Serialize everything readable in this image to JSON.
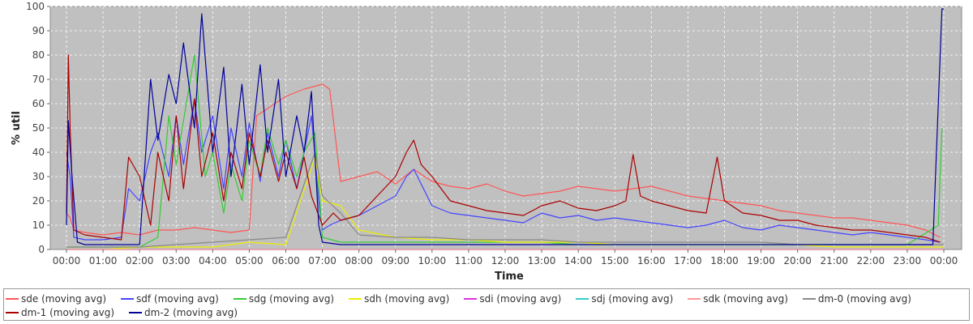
{
  "chart_data": {
    "type": "line",
    "title": "",
    "xlabel": "Time",
    "ylabel": "% util",
    "xlim": [
      0,
      24
    ],
    "ylim": [
      0,
      100
    ],
    "yticks": [
      0,
      10,
      20,
      30,
      40,
      50,
      60,
      70,
      80,
      90,
      100
    ],
    "xticks": [
      "00:00",
      "01:00",
      "02:00",
      "03:00",
      "04:00",
      "05:00",
      "06:00",
      "07:00",
      "08:00",
      "09:00",
      "10:00",
      "11:00",
      "12:00",
      "13:00",
      "14:00",
      "15:00",
      "16:00",
      "17:00",
      "18:00",
      "19:00",
      "20:00",
      "21:00",
      "22:00",
      "23:00",
      "00:00"
    ],
    "grid": true,
    "legend_position": "bottom",
    "series": [
      {
        "name": "sde (moving avg)",
        "color": "#ff5555",
        "x": [
          0,
          0.1,
          0.2,
          0.5,
          1,
          1.5,
          2,
          2.5,
          3,
          3.5,
          4,
          4.5,
          5,
          5.2,
          5.5,
          6,
          6.5,
          7,
          7.2,
          7.5,
          8,
          8.5,
          9,
          9.5,
          10,
          10.5,
          11,
          11.5,
          12,
          12.5,
          13,
          13.5,
          14,
          14.5,
          15,
          15.5,
          16,
          16.5,
          17,
          17.5,
          18,
          18.5,
          19,
          19.5,
          20,
          20.5,
          21,
          21.5,
          22,
          22.5,
          23,
          23.5,
          23.9
        ],
        "y": [
          15,
          13,
          8,
          7,
          6,
          7,
          6,
          8,
          8,
          9,
          8,
          7,
          8,
          55,
          58,
          63,
          66,
          68,
          66,
          28,
          30,
          32,
          27,
          33,
          28,
          26,
          25,
          27,
          24,
          22,
          23,
          24,
          26,
          25,
          24,
          25,
          26,
          24,
          22,
          21,
          20,
          19,
          18,
          16,
          15,
          14,
          13,
          13,
          12,
          11,
          10,
          8,
          5
        ]
      },
      {
        "name": "sdf (moving avg)",
        "color": "#4444ff",
        "x": [
          0,
          0.1,
          0.2,
          0.5,
          1,
          1.5,
          1.7,
          2,
          2.3,
          2.5,
          2.8,
          3,
          3.2,
          3.5,
          3.7,
          4,
          4.3,
          4.5,
          4.8,
          5,
          5.3,
          5.5,
          5.8,
          6,
          6.3,
          6.5,
          6.7,
          6.9,
          7,
          7.2,
          7.5,
          8,
          8.5,
          9,
          9.3,
          9.5,
          10,
          10.5,
          11,
          11.5,
          12,
          12.5,
          13,
          13.5,
          14,
          14.5,
          15,
          15.5,
          16,
          16.5,
          17,
          17.5,
          18,
          18.5,
          19,
          19.5,
          20,
          20.5,
          21,
          21.5,
          22,
          22.5,
          23,
          23.5,
          23.9
        ],
        "y": [
          40,
          30,
          5,
          4,
          4,
          5,
          25,
          20,
          40,
          48,
          30,
          55,
          35,
          62,
          40,
          55,
          25,
          50,
          30,
          52,
          28,
          48,
          30,
          45,
          25,
          40,
          55,
          20,
          8,
          10,
          12,
          14,
          18,
          22,
          30,
          33,
          18,
          15,
          14,
          13,
          12,
          11,
          15,
          13,
          14,
          12,
          13,
          12,
          11,
          10,
          9,
          10,
          12,
          9,
          8,
          10,
          9,
          8,
          7,
          6,
          7,
          6,
          5,
          4,
          3
        ]
      },
      {
        "name": "sdg (moving avg)",
        "color": "#33cc33",
        "x": [
          0,
          0.5,
          1,
          2,
          2.5,
          2.8,
          3,
          3.3,
          3.5,
          3.8,
          4,
          4.3,
          4.5,
          4.8,
          5,
          5.3,
          5.5,
          5.8,
          6,
          6.3,
          6.5,
          6.8,
          7,
          7.5,
          8,
          9,
          10,
          11,
          12,
          13,
          14,
          15,
          16,
          17,
          18,
          19,
          20,
          21,
          22,
          23,
          23.85,
          23.95
        ],
        "y": [
          1,
          1,
          1,
          1,
          5,
          55,
          35,
          62,
          80,
          30,
          40,
          15,
          35,
          20,
          45,
          30,
          50,
          35,
          45,
          30,
          40,
          48,
          5,
          3,
          3,
          3,
          3,
          3,
          3,
          3,
          2,
          2,
          2,
          2,
          2,
          2,
          2,
          2,
          2,
          2,
          10,
          50
        ]
      },
      {
        "name": "sdh (moving avg)",
        "color": "#eeee00",
        "x": [
          0,
          1,
          2,
          3,
          4,
          5,
          6,
          6.8,
          7,
          7.5,
          8,
          9,
          10,
          11,
          12,
          13,
          14,
          15,
          16,
          17,
          18,
          19,
          20,
          21,
          22,
          23,
          24
        ],
        "y": [
          0,
          0,
          1,
          1,
          1,
          3,
          2,
          38,
          20,
          18,
          8,
          5,
          4,
          4,
          3,
          3,
          3,
          2,
          2,
          2,
          2,
          2,
          2,
          1,
          1,
          1,
          1
        ]
      },
      {
        "name": "sdi (moving avg)",
        "color": "#dd33dd",
        "x": [
          0,
          24
        ],
        "y": [
          0,
          0
        ]
      },
      {
        "name": "sdj (moving avg)",
        "color": "#33cccc",
        "x": [
          0,
          24
        ],
        "y": [
          0,
          0
        ]
      },
      {
        "name": "sdk (moving avg)",
        "color": "#ff9999",
        "x": [
          0,
          24
        ],
        "y": [
          0,
          0
        ]
      },
      {
        "name": "dm-0 (moving avg)",
        "color": "#888888",
        "x": [
          0,
          1,
          2,
          3,
          4,
          5,
          6,
          6.8,
          7,
          7.5,
          8,
          9,
          10,
          11,
          12,
          13,
          14,
          15,
          16,
          17,
          18,
          19,
          20,
          21,
          22,
          23,
          24
        ],
        "y": [
          1,
          1,
          1,
          2,
          3,
          4,
          5,
          40,
          22,
          15,
          6,
          5,
          5,
          4,
          4,
          4,
          3,
          3,
          3,
          3,
          3,
          3,
          2,
          2,
          2,
          2,
          2
        ]
      },
      {
        "name": "dm-1 (moving avg)",
        "color": "#aa0000",
        "x": [
          0,
          0.05,
          0.1,
          0.2,
          0.5,
          1,
          1.5,
          1.7,
          2,
          2.3,
          2.5,
          2.8,
          3,
          3.2,
          3.5,
          3.7,
          4,
          4.3,
          4.5,
          4.8,
          5,
          5.3,
          5.5,
          5.8,
          6,
          6.3,
          6.5,
          6.7,
          7,
          7.3,
          7.5,
          8,
          8.5,
          9,
          9.3,
          9.5,
          9.7,
          10,
          10.5,
          11,
          11.5,
          12,
          12.5,
          13,
          13.5,
          14,
          14.5,
          15,
          15.3,
          15.5,
          15.7,
          16,
          16.5,
          17,
          17.5,
          17.8,
          18,
          18.5,
          19,
          19.5,
          20,
          20.5,
          21,
          21.5,
          22,
          22.5,
          23,
          23.5,
          23.9
        ],
        "y": [
          15,
          80,
          50,
          8,
          6,
          5,
          4,
          38,
          30,
          10,
          40,
          20,
          55,
          25,
          62,
          30,
          48,
          20,
          40,
          25,
          48,
          30,
          45,
          28,
          40,
          25,
          38,
          22,
          10,
          15,
          12,
          14,
          22,
          30,
          40,
          45,
          35,
          30,
          20,
          18,
          16,
          15,
          14,
          18,
          20,
          17,
          16,
          18,
          20,
          39,
          22,
          20,
          18,
          16,
          15,
          38,
          20,
          15,
          14,
          12,
          12,
          10,
          9,
          8,
          8,
          7,
          6,
          5,
          3
        ]
      },
      {
        "name": "dm-2 (moving avg)",
        "color": "#000099",
        "x": [
          0,
          0.05,
          0.15,
          0.3,
          0.5,
          1,
          1.5,
          2,
          2.3,
          2.5,
          2.8,
          3,
          3.2,
          3.5,
          3.7,
          4,
          4.3,
          4.5,
          4.8,
          5,
          5.3,
          5.5,
          5.8,
          6,
          6.3,
          6.5,
          6.7,
          6.9,
          7,
          7.5,
          8,
          9,
          10,
          11,
          12,
          13,
          14,
          15,
          16,
          17,
          18,
          19,
          20,
          21,
          22,
          23,
          23.7,
          23.85,
          23.95,
          24
        ],
        "y": [
          10,
          53,
          30,
          3,
          2,
          2,
          2,
          2,
          70,
          45,
          72,
          60,
          85,
          50,
          97,
          40,
          75,
          30,
          68,
          35,
          76,
          40,
          70,
          30,
          55,
          40,
          65,
          10,
          3,
          2,
          2,
          2,
          2,
          2,
          2,
          2,
          2,
          2,
          2,
          2,
          2,
          2,
          2,
          2,
          2,
          2,
          2,
          60,
          99,
          99
        ]
      }
    ]
  }
}
